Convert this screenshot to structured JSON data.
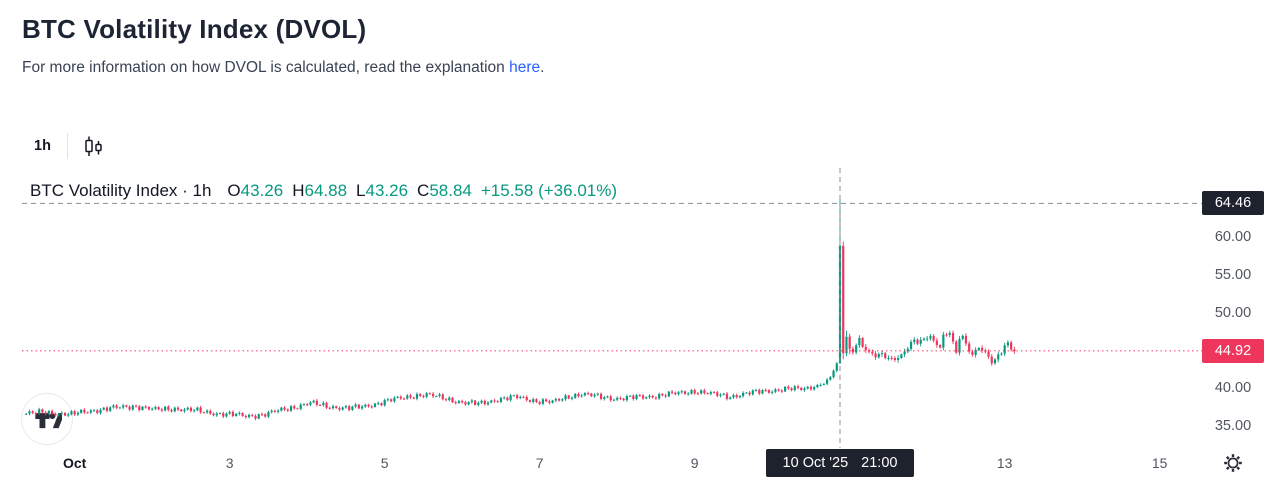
{
  "header": {
    "title": "BTC Volatility Index (DVOL)",
    "subtitle_text": "For more information on how DVOL is calculated, read the explanation",
    "subtitle_link": "here",
    "subtitle_period": "."
  },
  "toolbar": {
    "interval": "1h"
  },
  "legend": {
    "title": "BTC Volatility Index · 1h",
    "open_label": "O",
    "open": "43.26",
    "high_label": "H",
    "high": "64.88",
    "low_label": "L",
    "low": "43.26",
    "close_label": "C",
    "close": "58.84",
    "change_abs": "+15.58",
    "change_pct": "(+36.01%)"
  },
  "price_axis": {
    "crosshair_label": "64.46",
    "last_price_label": "44.92",
    "ticks": [
      {
        "label": "60.00",
        "value": 60
      },
      {
        "label": "55.00",
        "value": 55
      },
      {
        "label": "50.00",
        "value": 50
      },
      {
        "label": "40.00",
        "value": 40
      },
      {
        "label": "35.00",
        "value": 35
      }
    ]
  },
  "time_axis": {
    "crosshair_date": "10 Oct '25",
    "crosshair_time": "21:00",
    "labels": [
      {
        "text": "Oct",
        "hour": 15,
        "bold": true
      },
      {
        "text": "3",
        "hour": 63
      },
      {
        "text": "5",
        "hour": 111
      },
      {
        "text": "7",
        "hour": 159
      },
      {
        "text": "9",
        "hour": 207
      },
      {
        "text": "13",
        "hour": 303
      },
      {
        "text": "15",
        "hour": 351
      }
    ]
  },
  "colors": {
    "up": "#089981",
    "down": "#ef355c",
    "crosshair": "#8a8e98",
    "crosshair_badge_bg": "#1e222d",
    "last_price_badge_bg": "#ef355c",
    "last_price_line": "#f23b62",
    "link": "#2962ff",
    "axis_text": "#51555e",
    "icon_ink": "#2a2e39"
  },
  "branding": {
    "logo_name": "TradingView"
  },
  "chart_data": {
    "type": "candlestick",
    "title": "BTC Volatility Index",
    "interval": "1h",
    "x_unit": "hours; hour 15 = Oct 1 00:00, one candle per hour",
    "y_ticks": [
      60,
      55,
      50,
      40,
      35
    ],
    "ylim": [
      33.5,
      66.5
    ],
    "candles_total": 307,
    "last_price": 44.92,
    "crosshair": {
      "hour": 252,
      "price": 64.46,
      "time_label": "10 Oct '25 21:00"
    },
    "hovered_candle": {
      "hour": 252,
      "open": 43.26,
      "high": 64.88,
      "low": 43.26,
      "close": 58.84,
      "change": 15.58,
      "change_pct": 36.01
    },
    "explicit_candles": [
      [
        252,
        43.26,
        64.88,
        43.26,
        58.84
      ],
      [
        253,
        58.84,
        59.4,
        43.8,
        44.6
      ],
      [
        254,
        44.6,
        47.6,
        44.2,
        46.8
      ],
      [
        255,
        46.8,
        47.2,
        44.5,
        45.2
      ]
    ],
    "price_keypoints": [
      [
        0,
        36.6
      ],
      [
        6,
        36.8
      ],
      [
        14,
        36.5
      ],
      [
        20,
        37.0
      ],
      [
        26,
        37.3
      ],
      [
        34,
        37.6
      ],
      [
        40,
        37.1
      ],
      [
        46,
        37.3
      ],
      [
        54,
        36.9
      ],
      [
        60,
        36.6
      ],
      [
        68,
        36.3
      ],
      [
        74,
        36.5
      ],
      [
        80,
        37.2
      ],
      [
        88,
        38.0
      ],
      [
        93,
        37.6
      ],
      [
        100,
        37.3
      ],
      [
        104,
        37.5
      ],
      [
        112,
        38.3
      ],
      [
        120,
        39.0
      ],
      [
        124,
        39.1
      ],
      [
        130,
        38.6
      ],
      [
        136,
        38.0
      ],
      [
        140,
        37.9
      ],
      [
        146,
        38.5
      ],
      [
        152,
        38.8
      ],
      [
        158,
        38.3
      ],
      [
        163,
        38.1
      ],
      [
        168,
        38.9
      ],
      [
        172,
        39.2
      ],
      [
        178,
        38.8
      ],
      [
        184,
        38.6
      ],
      [
        190,
        38.8
      ],
      [
        196,
        39.0
      ],
      [
        202,
        39.3
      ],
      [
        207,
        39.6
      ],
      [
        212,
        39.2
      ],
      [
        218,
        38.9
      ],
      [
        224,
        39.3
      ],
      [
        228,
        39.6
      ],
      [
        234,
        39.8
      ],
      [
        240,
        39.9
      ],
      [
        244,
        40.2
      ],
      [
        247,
        40.6
      ],
      [
        249,
        41.4
      ],
      [
        250,
        42.3
      ],
      [
        251,
        43.2
      ],
      [
        256,
        45.0
      ],
      [
        258,
        46.5
      ],
      [
        259,
        45.5
      ],
      [
        261,
        44.6
      ],
      [
        263,
        44.2
      ],
      [
        265,
        44.5
      ],
      [
        267,
        44.0
      ],
      [
        269,
        43.9
      ],
      [
        271,
        44.3
      ],
      [
        273,
        45.3
      ],
      [
        275,
        46.3
      ],
      [
        276,
        46.0
      ],
      [
        278,
        46.5
      ],
      [
        280,
        47.0
      ],
      [
        281,
        46.2
      ],
      [
        283,
        45.5
      ],
      [
        284,
        46.8
      ],
      [
        286,
        47.3
      ],
      [
        287,
        45.9
      ],
      [
        288,
        44.6
      ],
      [
        289,
        46.6
      ],
      [
        290,
        46.9
      ],
      [
        291,
        45.8
      ],
      [
        292,
        45.1
      ],
      [
        293,
        44.5
      ],
      [
        294,
        44.9
      ],
      [
        295,
        45.5
      ],
      [
        296,
        45.0
      ],
      [
        297,
        44.6
      ],
      [
        298,
        44.1
      ],
      [
        299,
        43.3
      ],
      [
        300,
        43.6
      ],
      [
        301,
        44.3
      ],
      [
        302,
        44.8
      ],
      [
        303,
        45.6
      ],
      [
        304,
        46.0
      ],
      [
        305,
        45.4
      ],
      [
        306,
        44.92
      ]
    ],
    "noise_amp": 0.26
  }
}
